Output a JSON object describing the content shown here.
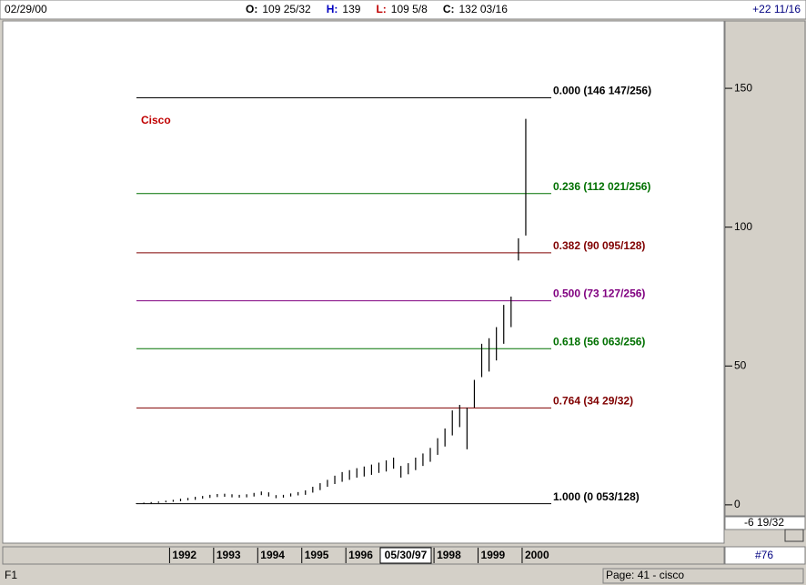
{
  "header": {
    "date": "02/29/00",
    "items": [
      {
        "label": "O:",
        "value": "109 25/32"
      },
      {
        "label": "H:",
        "value": "139"
      },
      {
        "label": "L:",
        "value": "109 5/8"
      },
      {
        "label": "C:",
        "value": "132 03/16"
      }
    ],
    "change": "+22 11/16"
  },
  "chart_data": {
    "type": "ohlc",
    "title": "Cisco",
    "low": [
      0.3,
      0.4,
      0.5,
      0.7,
      0.9,
      1.1,
      1.3,
      1.6,
      1.8,
      2.2,
      2.5,
      2.8,
      2.9,
      2.7,
      2.6,
      2.7,
      3.0,
      3.5,
      3.0,
      2.4,
      2.6,
      3.0,
      3.4,
      3.6,
      4.4,
      5.3,
      6.5,
      7.5,
      8.3,
      9.0,
      9.8,
      10.2,
      10.8,
      11.5,
      12.0,
      13.0,
      9.8,
      11.0,
      12.5,
      14.0,
      15.5,
      18.0,
      21.0,
      25.0,
      28.0,
      20.0,
      35.0,
      46.0,
      48.0,
      52.0,
      58.0,
      64.0,
      88.0,
      97.0
    ],
    "high": [
      0.6,
      0.8,
      1.0,
      1.2,
      1.5,
      1.8,
      2.2,
      2.5,
      2.9,
      3.2,
      3.6,
      3.9,
      4.0,
      3.8,
      3.6,
      3.8,
      4.3,
      4.8,
      4.5,
      3.5,
      3.6,
      4.1,
      4.6,
      5.2,
      6.5,
      7.8,
      9.0,
      10.5,
      11.8,
      12.5,
      13.2,
      13.8,
      14.5,
      15.2,
      16.0,
      17.0,
      14.0,
      15.0,
      17.0,
      18.5,
      20.5,
      24.0,
      27.5,
      34.0,
      36.0,
      35.0,
      45.0,
      58.0,
      60.0,
      64.0,
      72.0,
      75.0,
      96.0,
      139.0
    ],
    "color": "#000000",
    "xlim": [
      -0.5,
      53.5
    ],
    "xticks": [
      {
        "value": 5,
        "label": "1992"
      },
      {
        "value": 11,
        "label": "1993"
      },
      {
        "value": 17,
        "label": "1994"
      },
      {
        "value": 23,
        "label": "1995"
      },
      {
        "value": 29,
        "label": "1996"
      },
      {
        "value": 41,
        "label": "1998"
      },
      {
        "value": 47,
        "label": "1999"
      },
      {
        "value": 53,
        "label": "2000"
      }
    ],
    "cursor_date": "05/30/97",
    "ylim": [
      -13.8,
      174.6
    ],
    "yticks": [
      0,
      50,
      100,
      150
    ],
    "fib_levels": [
      {
        "value": 146.574,
        "label": "0.000 (146 147/256)",
        "color": "#000000"
      },
      {
        "value": 112.082,
        "label": "0.236 (112 021/256)",
        "color": "#007000"
      },
      {
        "value": 90.742,
        "label": "0.382 (90 095/128)",
        "color": "#800000"
      },
      {
        "value": 73.496,
        "label": "0.500 (73 127/256)",
        "color": "#800080"
      },
      {
        "value": 56.246,
        "label": "0.618 (56 063/256)",
        "color": "#007000"
      },
      {
        "value": 34.906,
        "label": "0.764 (34 29/32)",
        "color": "#800000"
      },
      {
        "value": 0.414,
        "label": "1.000 (0 053/128)",
        "color": "#000000"
      }
    ],
    "cursor_value": "-6 19/32"
  },
  "footer": {
    "record": "#76",
    "key": "F1",
    "page": "Page: 41 - cisco"
  }
}
